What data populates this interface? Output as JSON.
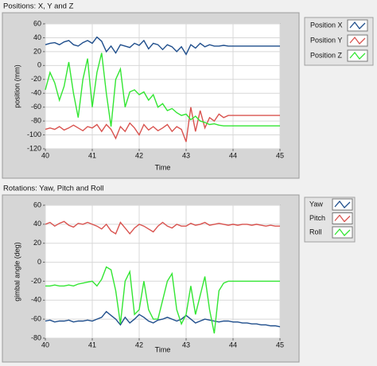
{
  "chart_data": [
    {
      "type": "line",
      "title": "Positions: X, Y and Z",
      "x_label": "Time",
      "y_label": "position (mm)",
      "x": [
        40.0,
        40.1,
        40.2,
        40.3,
        40.4,
        40.5,
        40.6,
        40.7,
        40.8,
        40.9,
        41.0,
        41.1,
        41.2,
        41.3,
        41.4,
        41.5,
        41.6,
        41.7,
        41.8,
        41.9,
        42.0,
        42.1,
        42.2,
        42.3,
        42.4,
        42.5,
        42.6,
        42.7,
        42.8,
        42.9,
        43.0,
        43.1,
        43.2,
        43.3,
        43.4,
        43.5,
        43.6,
        43.7,
        43.8,
        43.9,
        44.0,
        44.1,
        44.2,
        44.3,
        44.4,
        44.5,
        44.6,
        44.7,
        44.8,
        44.9,
        45.0
      ],
      "series": [
        {
          "name": "Position X",
          "color": "#1f4e8c",
          "values": [
            30,
            32,
            33,
            30,
            34,
            36,
            30,
            28,
            33,
            36,
            32,
            41,
            35,
            20,
            28,
            18,
            30,
            28,
            26,
            32,
            29,
            36,
            24,
            32,
            30,
            23,
            30,
            27,
            20,
            27,
            16,
            30,
            25,
            32,
            27,
            30,
            28,
            28,
            29,
            28,
            28,
            28,
            28,
            28,
            28,
            28,
            28,
            28,
            28,
            28,
            28
          ]
        },
        {
          "name": "Position Y",
          "color": "#d9534f",
          "values": [
            -92,
            -90,
            -92,
            -88,
            -93,
            -90,
            -86,
            -90,
            -94,
            -88,
            -90,
            -85,
            -95,
            -85,
            -92,
            -105,
            -88,
            -95,
            -83,
            -90,
            -100,
            -85,
            -93,
            -88,
            -94,
            -90,
            -85,
            -95,
            -88,
            -92,
            -110,
            -60,
            -95,
            -65,
            -90,
            -75,
            -80,
            -70,
            -75,
            -72,
            -72,
            -72,
            -72,
            -72,
            -72,
            -72,
            -72,
            -72,
            -72,
            -72,
            -72
          ]
        },
        {
          "name": "Position Z",
          "color": "#33e633",
          "values": [
            -35,
            -10,
            -25,
            -50,
            -30,
            5,
            -40,
            -75,
            -20,
            10,
            -60,
            -10,
            18,
            -40,
            -88,
            -20,
            -5,
            -60,
            -38,
            -35,
            -42,
            -38,
            -50,
            -42,
            -60,
            -55,
            -65,
            -62,
            -68,
            -72,
            -70,
            -78,
            -73,
            -80,
            -82,
            -85,
            -84,
            -86,
            -87,
            -87,
            -87,
            -87,
            -87,
            -87,
            -87,
            -87,
            -87,
            -87,
            -87,
            -87,
            -87
          ]
        }
      ],
      "xlim": [
        40,
        45
      ],
      "xticks": [
        40,
        41,
        42,
        43,
        44,
        45
      ],
      "ylim": [
        -120,
        60
      ],
      "yticks": [
        60,
        40,
        20,
        0,
        -20,
        -40,
        -60,
        -80,
        -100,
        -120
      ],
      "grid": true
    },
    {
      "type": "line",
      "title": "Rotations: Yaw, Pitch and Roll",
      "x_label": "Time",
      "y_label": "gimbal angle (deg)",
      "x": [
        40.0,
        40.1,
        40.2,
        40.3,
        40.4,
        40.5,
        40.6,
        40.7,
        40.8,
        40.9,
        41.0,
        41.1,
        41.2,
        41.3,
        41.4,
        41.5,
        41.6,
        41.7,
        41.8,
        41.9,
        42.0,
        42.1,
        42.2,
        42.3,
        42.4,
        42.5,
        42.6,
        42.7,
        42.8,
        42.9,
        43.0,
        43.1,
        43.2,
        43.3,
        43.4,
        43.5,
        43.6,
        43.7,
        43.8,
        43.9,
        44.0,
        44.1,
        44.2,
        44.3,
        44.4,
        44.5,
        44.6,
        44.7,
        44.8,
        44.9,
        45.0
      ],
      "series": [
        {
          "name": "Yaw",
          "color": "#1f4e8c",
          "values": [
            -62,
            -61,
            -63,
            -62,
            -62,
            -61,
            -63,
            -62,
            -62,
            -61,
            -62,
            -60,
            -58,
            -52,
            -56,
            -60,
            -66,
            -58,
            -64,
            -60,
            -55,
            -58,
            -62,
            -64,
            -61,
            -60,
            -58,
            -60,
            -62,
            -60,
            -56,
            -60,
            -64,
            -62,
            -60,
            -61,
            -62,
            -63,
            -62,
            -62,
            -63,
            -63,
            -64,
            -64,
            -65,
            -65,
            -66,
            -66,
            -67,
            -67,
            -68
          ]
        },
        {
          "name": "Pitch",
          "color": "#d9534f",
          "values": [
            40,
            42,
            38,
            41,
            43,
            39,
            37,
            41,
            40,
            42,
            40,
            38,
            35,
            40,
            33,
            30,
            42,
            36,
            30,
            36,
            40,
            38,
            35,
            32,
            38,
            42,
            38,
            36,
            40,
            38,
            38,
            41,
            39,
            40,
            42,
            39,
            40,
            41,
            40,
            39,
            40,
            39,
            40,
            40,
            39,
            40,
            39,
            38,
            39,
            38,
            38
          ]
        },
        {
          "name": "Roll",
          "color": "#33e633",
          "values": [
            -25,
            -25,
            -24,
            -25,
            -25,
            -24,
            -25,
            -23,
            -22,
            -21,
            -20,
            -25,
            -18,
            -5,
            -8,
            -30,
            -65,
            -20,
            -10,
            -55,
            -50,
            -20,
            -50,
            -60,
            -60,
            -40,
            -20,
            -12,
            -50,
            -65,
            -55,
            -25,
            -55,
            -35,
            -15,
            -50,
            -75,
            -30,
            -22,
            -20,
            -20,
            -20,
            -20,
            -20,
            -20,
            -20,
            -20,
            -20,
            -20,
            -20,
            -20
          ]
        }
      ],
      "xlim": [
        40,
        45
      ],
      "xticks": [
        40,
        41,
        42,
        43,
        44,
        45
      ],
      "ylim": [
        -80,
        60
      ],
      "yticks": [
        60,
        40,
        20,
        0,
        -20,
        -40,
        -60,
        -80
      ],
      "grid": true
    }
  ]
}
